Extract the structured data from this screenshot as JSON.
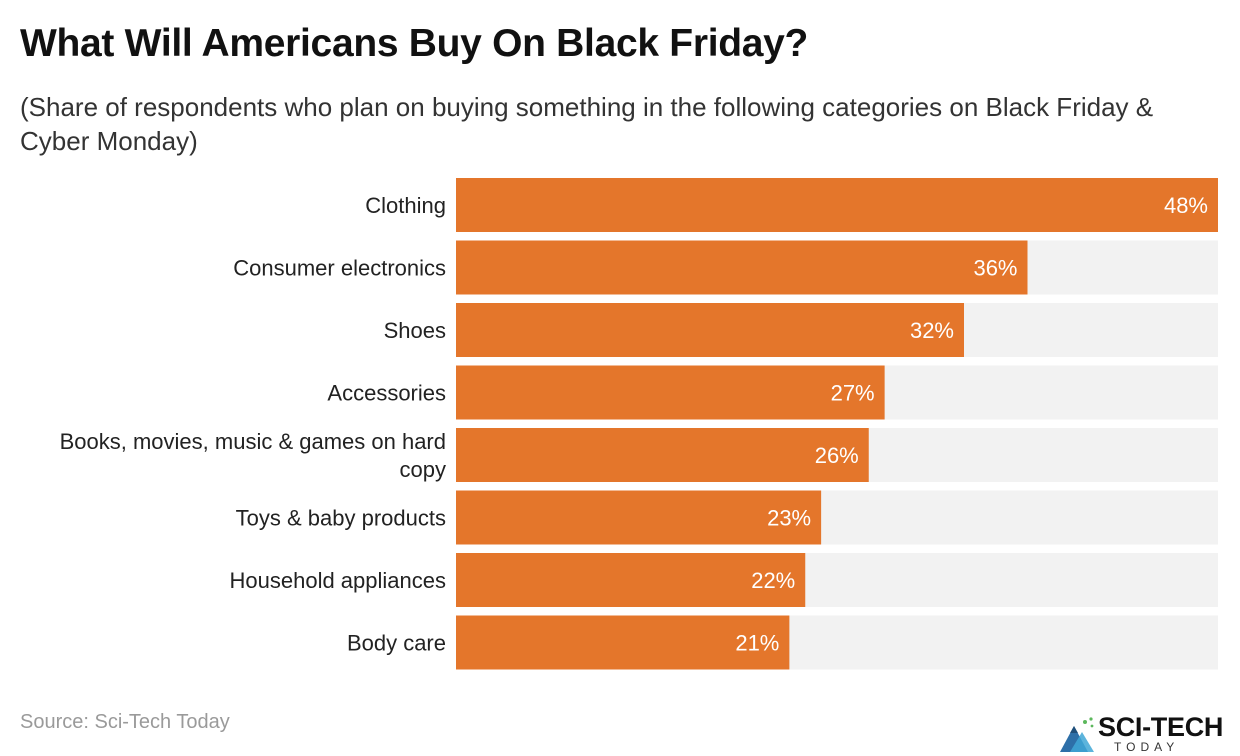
{
  "title": "What Will Americans Buy On Black Friday?",
  "subtitle": "(Share of respondents who plan on buying something in the following categories on Black Friday & Cyber Monday)",
  "source": "Source: Sci-Tech Today",
  "logo": {
    "name": "SCI-TECH",
    "sub": "TODAY"
  },
  "colors": {
    "bar": "#e4762b",
    "track": "#f2f2f2",
    "label": "#222222",
    "value": "#ffffff"
  },
  "chart_data": {
    "type": "bar",
    "orientation": "horizontal",
    "categories": [
      "Clothing",
      "Consumer electronics",
      "Shoes",
      "Accessories",
      "Books, movies, music & games on hard copy",
      "Toys & baby products",
      "Household appliances",
      "Body care"
    ],
    "values": [
      48,
      36,
      32,
      27,
      26,
      23,
      22,
      21
    ],
    "value_labels": [
      "48%",
      "36%",
      "32%",
      "27%",
      "26%",
      "23%",
      "22%",
      "21%"
    ],
    "unit": "%",
    "xlim": [
      0,
      48
    ],
    "grid": false,
    "legend": "none"
  }
}
